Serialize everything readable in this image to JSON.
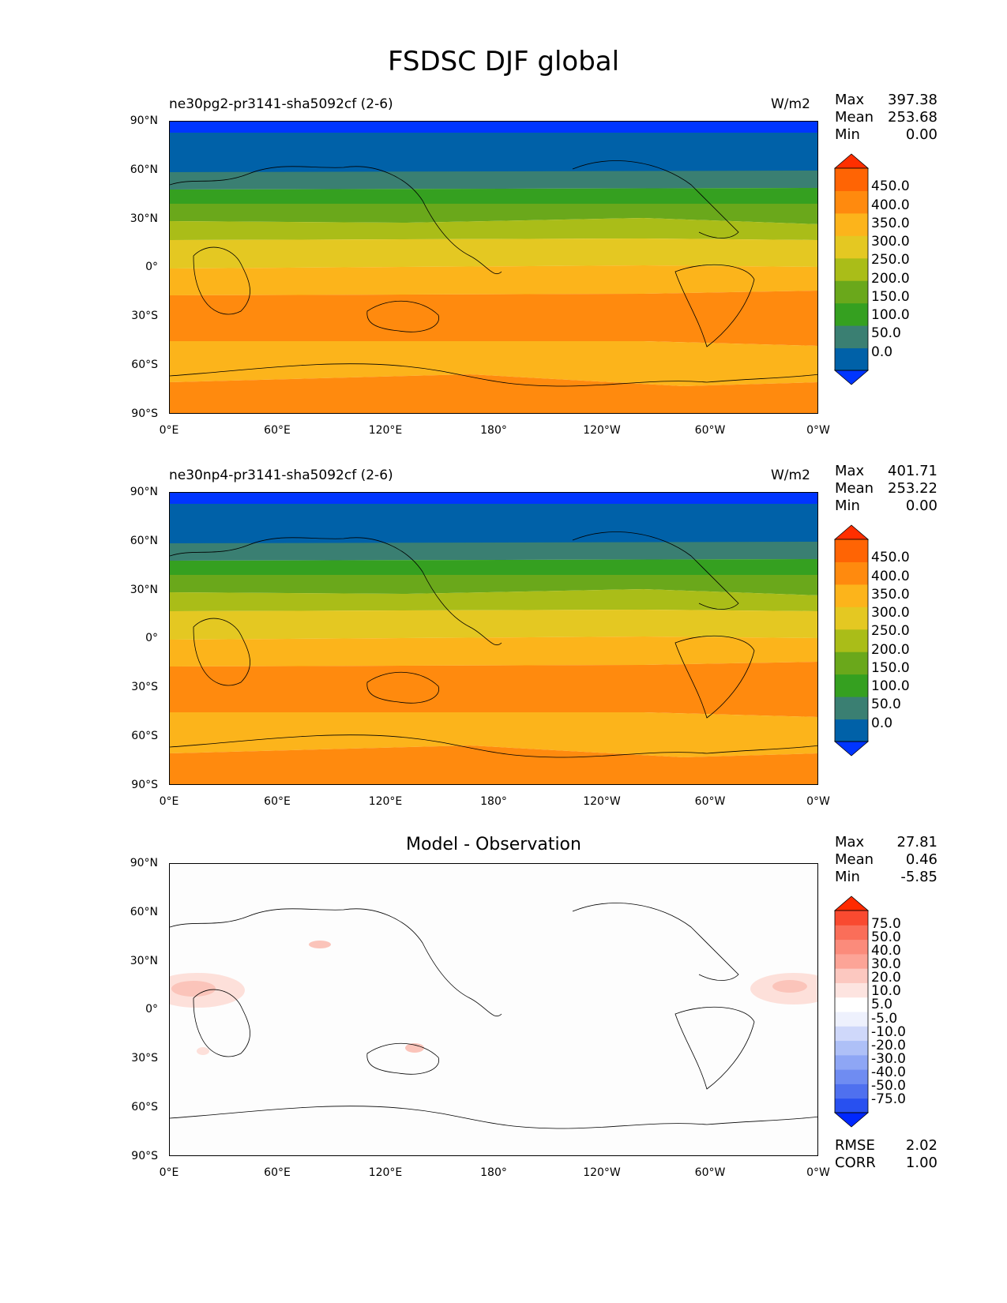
{
  "title": "FSDSC DJF global",
  "panels": [
    {
      "name": "model",
      "label": "ne30pg2-pr3141-sha5092cf (2-6)",
      "units": "W/m2",
      "stats": {
        "max_label": "Max",
        "max": "397.38",
        "mean_label": "Mean",
        "mean": "253.68",
        "min_label": "Min",
        "min": "0.00"
      },
      "colorbar": {
        "colors": [
          "#0035ff",
          "#0061a8",
          "#3a7f72",
          "#35a020",
          "#6aa81b",
          "#aabd18",
          "#e4c822",
          "#fcb41b",
          "#ff8a0e",
          "#ff6404",
          "#ff2f00"
        ],
        "labels": [
          "450.0",
          "400.0",
          "350.0",
          "300.0",
          "250.0",
          "200.0",
          "150.0",
          "100.0",
          "50.0",
          "0.0"
        ]
      }
    },
    {
      "name": "reference",
      "label": "ne30np4-pr3141-sha5092cf (2-6)",
      "units": "W/m2",
      "stats": {
        "max_label": "Max",
        "max": "401.71",
        "mean_label": "Mean",
        "mean": "253.22",
        "min_label": "Min",
        "min": "0.00"
      },
      "colorbar": {
        "colors": [
          "#0035ff",
          "#0061a8",
          "#3a7f72",
          "#35a020",
          "#6aa81b",
          "#aabd18",
          "#e4c822",
          "#fcb41b",
          "#ff8a0e",
          "#ff6404",
          "#ff2f00"
        ],
        "labels": [
          "450.0",
          "400.0",
          "350.0",
          "300.0",
          "250.0",
          "200.0",
          "150.0",
          "100.0",
          "50.0",
          "0.0"
        ]
      }
    },
    {
      "name": "difference",
      "title": "Model - Observation",
      "stats": {
        "max_label": "Max",
        "max": "27.81",
        "mean_label": "Mean",
        "mean": "0.46",
        "min_label": "Min",
        "min": "-5.85"
      },
      "colorbar": {
        "colors": [
          "#0027ff",
          "#2850f0",
          "#4f70ef",
          "#6f8cf2",
          "#8ea6f5",
          "#aec0f7",
          "#cfd8fa",
          "#eef1fd",
          "#ffffff",
          "#fde4e0",
          "#fcc8c0",
          "#fca497",
          "#fb8b7b",
          "#fa6e59",
          "#f94a30",
          "#ff2a00"
        ],
        "labels": [
          "75.0",
          "50.0",
          "40.0",
          "30.0",
          "20.0",
          "10.0",
          "5.0",
          "-5.0",
          "-10.0",
          "-20.0",
          "-30.0",
          "-40.0",
          "-50.0",
          "-75.0"
        ]
      },
      "rmse_label": "RMSE",
      "rmse": "2.02",
      "corr_label": "CORR",
      "corr": "1.00"
    }
  ],
  "axes": {
    "lat_ticks": [
      "90°N",
      "60°N",
      "30°N",
      "0°",
      "30°S",
      "60°S",
      "90°S"
    ],
    "lon_ticks": [
      "0°E",
      "60°E",
      "120°E",
      "180°",
      "120°W",
      "60°W",
      "0°W"
    ]
  }
}
